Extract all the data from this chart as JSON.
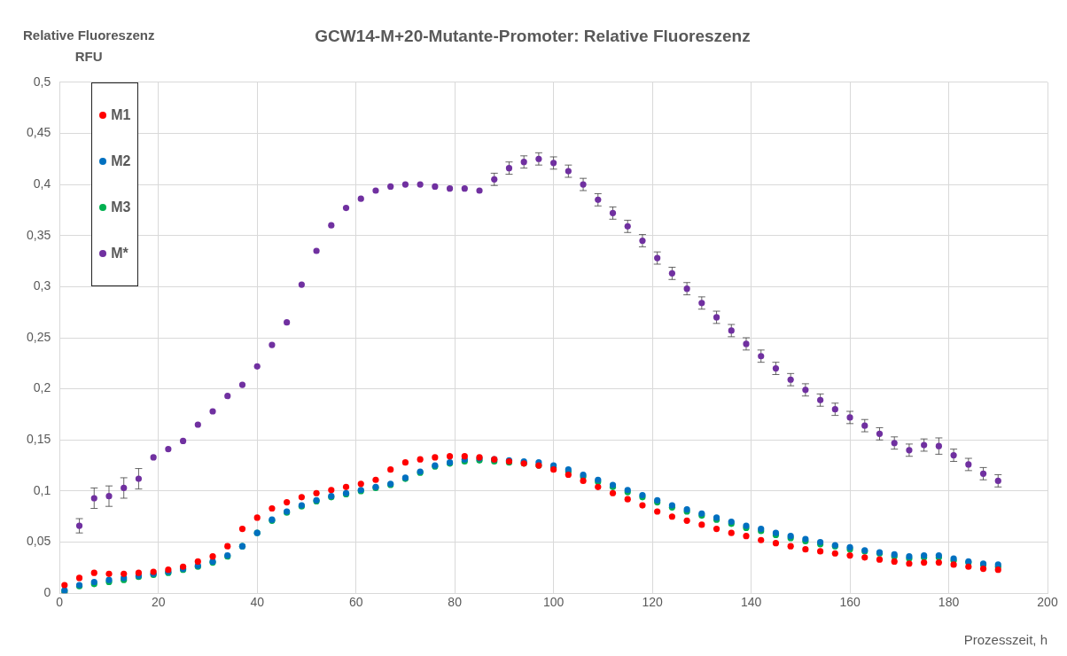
{
  "chart_data": {
    "type": "scatter",
    "title": "GCW14-M+20-Mutante-Promoter: Relative Fluoreszenz",
    "xlabel": "Prozesszeit, h",
    "ylabel": "Relative Fluoreszenz\nRFU",
    "x": [
      1,
      4,
      7,
      10,
      13,
      16,
      19,
      22,
      25,
      28,
      31,
      34,
      37,
      40,
      43,
      46,
      49,
      52,
      55,
      58,
      61,
      64,
      67,
      70,
      73,
      76,
      79,
      82,
      85,
      88,
      91,
      94,
      97,
      100,
      103,
      106,
      109,
      112,
      115,
      118,
      121,
      124,
      127,
      130,
      133,
      136,
      139,
      142,
      145,
      148,
      151,
      154,
      157,
      160,
      163,
      166,
      169,
      172,
      175,
      178,
      181,
      184,
      187,
      190
    ],
    "series": [
      {
        "name": "M1",
        "color": "#ff0000",
        "values": [
          0.008,
          0.015,
          0.02,
          0.019,
          0.019,
          0.02,
          0.021,
          0.023,
          0.026,
          0.031,
          0.036,
          0.046,
          0.063,
          0.074,
          0.083,
          0.089,
          0.094,
          0.098,
          0.101,
          0.104,
          0.107,
          0.111,
          0.121,
          0.128,
          0.131,
          0.133,
          0.134,
          0.134,
          0.133,
          0.131,
          0.129,
          0.127,
          0.125,
          0.121,
          0.116,
          0.11,
          0.104,
          0.098,
          0.092,
          0.086,
          0.08,
          0.075,
          0.071,
          0.067,
          0.063,
          0.059,
          0.056,
          0.052,
          0.049,
          0.046,
          0.043,
          0.041,
          0.039,
          0.037,
          0.035,
          0.033,
          0.031,
          0.029,
          0.03,
          0.03,
          0.028,
          0.026,
          0.024,
          0.023
        ]
      },
      {
        "name": "M2",
        "color": "#0070c0",
        "values": [
          0.003,
          0.008,
          0.011,
          0.013,
          0.015,
          0.017,
          0.019,
          0.021,
          0.024,
          0.027,
          0.031,
          0.037,
          0.046,
          0.059,
          0.072,
          0.08,
          0.086,
          0.091,
          0.095,
          0.098,
          0.101,
          0.104,
          0.107,
          0.113,
          0.119,
          0.125,
          0.128,
          0.131,
          0.132,
          0.131,
          0.13,
          0.129,
          0.128,
          0.125,
          0.121,
          0.116,
          0.111,
          0.106,
          0.101,
          0.096,
          0.091,
          0.086,
          0.082,
          0.078,
          0.074,
          0.07,
          0.066,
          0.063,
          0.059,
          0.056,
          0.053,
          0.05,
          0.047,
          0.045,
          0.042,
          0.04,
          0.038,
          0.036,
          0.037,
          0.037,
          0.034,
          0.031,
          0.029,
          0.028
        ]
      },
      {
        "name": "M3",
        "color": "#00b050",
        "values": [
          0.002,
          0.007,
          0.009,
          0.011,
          0.013,
          0.016,
          0.018,
          0.02,
          0.023,
          0.026,
          0.03,
          0.036,
          0.046,
          0.059,
          0.071,
          0.079,
          0.085,
          0.09,
          0.094,
          0.097,
          0.1,
          0.103,
          0.106,
          0.112,
          0.118,
          0.124,
          0.127,
          0.129,
          0.13,
          0.129,
          0.128,
          0.127,
          0.125,
          0.123,
          0.119,
          0.114,
          0.109,
          0.104,
          0.099,
          0.094,
          0.089,
          0.084,
          0.08,
          0.076,
          0.072,
          0.068,
          0.064,
          0.061,
          0.057,
          0.054,
          0.051,
          0.048,
          0.046,
          0.043,
          0.041,
          0.039,
          0.036,
          0.034,
          0.035,
          0.035,
          0.032,
          0.03,
          0.028,
          0.026
        ]
      },
      {
        "name": "M*",
        "color": "#7030a0",
        "values": [
          0.0,
          0.066,
          0.093,
          0.095,
          0.103,
          0.112,
          0.133,
          0.141,
          0.149,
          0.165,
          0.178,
          0.193,
          0.204,
          0.222,
          0.243,
          0.265,
          0.302,
          0.335,
          0.36,
          0.377,
          0.386,
          0.394,
          0.398,
          0.4,
          0.4,
          0.398,
          0.396,
          0.396,
          0.394,
          0.405,
          0.416,
          0.422,
          0.425,
          0.421,
          0.413,
          0.4,
          0.385,
          0.372,
          0.359,
          0.345,
          0.328,
          0.313,
          0.298,
          0.284,
          0.27,
          0.257,
          0.244,
          0.232,
          0.22,
          0.209,
          0.199,
          0.189,
          0.18,
          0.172,
          0.164,
          0.156,
          0.147,
          0.14,
          0.145,
          0.144,
          0.135,
          0.126,
          0.117,
          0.11
        ],
        "errors": [
          null,
          0.007,
          0.01,
          0.01,
          0.01,
          0.01,
          null,
          null,
          null,
          null,
          null,
          null,
          null,
          null,
          null,
          null,
          null,
          null,
          null,
          null,
          null,
          null,
          null,
          null,
          null,
          null,
          null,
          null,
          null,
          0.006,
          0.006,
          0.006,
          0.006,
          0.006,
          0.006,
          0.006,
          0.006,
          0.006,
          0.006,
          0.006,
          0.006,
          0.006,
          0.006,
          0.006,
          0.006,
          0.006,
          0.006,
          0.006,
          0.006,
          0.006,
          0.006,
          0.006,
          0.006,
          0.006,
          0.006,
          0.006,
          0.006,
          0.006,
          0.006,
          0.008,
          0.006,
          0.006,
          0.006,
          0.006
        ]
      }
    ],
    "xlim": [
      0,
      200
    ],
    "xticks": [
      0,
      20,
      40,
      60,
      80,
      100,
      120,
      140,
      160,
      180,
      200
    ],
    "ylim": [
      0,
      0.5
    ],
    "yticks": [
      0,
      {
        "value": 0.05,
        "label": "0,05"
      },
      {
        "value": 0.1,
        "label": "0,1"
      },
      {
        "value": 0.15,
        "label": "0,15"
      },
      {
        "value": 0.2,
        "label": "0,2"
      },
      {
        "value": 0.25,
        "label": "0,25"
      },
      {
        "value": 0.3,
        "label": "0,3"
      },
      {
        "value": 0.35,
        "label": "0,35"
      },
      {
        "value": 0.4,
        "label": "0,4"
      },
      {
        "value": 0.45,
        "label": "0,45"
      },
      {
        "value": 0.5,
        "label": "0,5"
      }
    ],
    "grid": true,
    "legend": "top left",
    "marker": "circle"
  }
}
